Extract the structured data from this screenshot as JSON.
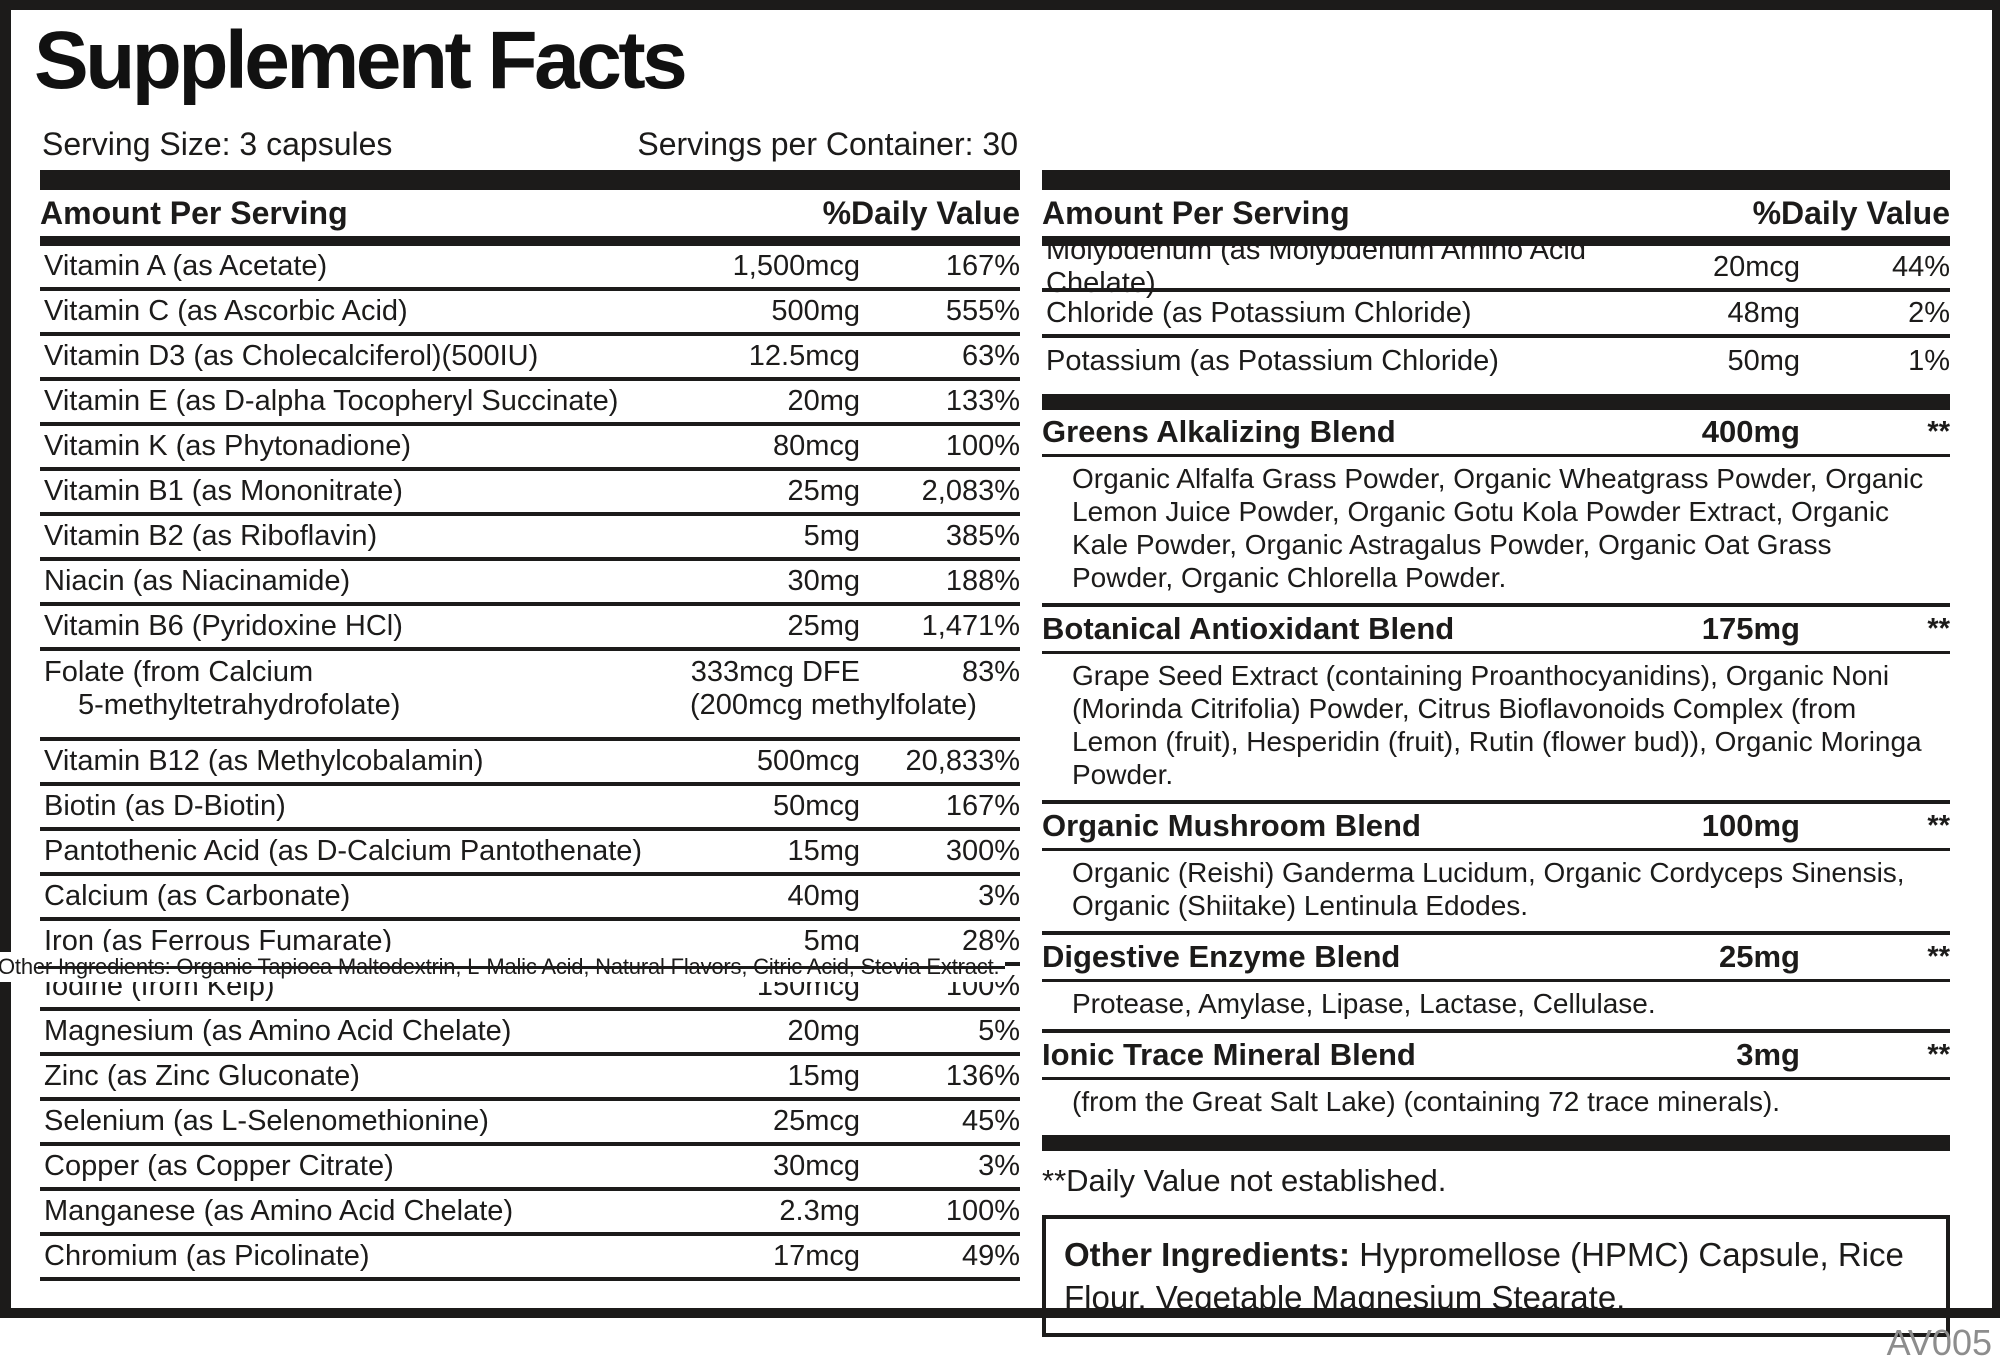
{
  "title": "Supplement Facts",
  "serving": {
    "size": "Serving Size: 3 capsules",
    "per_container": "Servings per Container: 30"
  },
  "table_headers": {
    "amount": "Amount Per Serving",
    "daily_value": "%Daily Value"
  },
  "left_table": {
    "rows": [
      {
        "name": "Vitamin A (as Acetate)",
        "amount": "1,500mcg",
        "dv": "167%"
      },
      {
        "name": "Vitamin C (as Ascorbic Acid)",
        "amount": "500mg",
        "dv": "555%"
      },
      {
        "name": "Vitamin D3 (as Cholecalciferol)(500IU)",
        "amount": "12.5mcg",
        "dv": "63%"
      },
      {
        "name": "Vitamin E (as D-alpha Tocopheryl Succinate)",
        "amount": "20mg",
        "dv": "133%"
      },
      {
        "name": "Vitamin K (as Phytonadione)",
        "amount": "80mcg",
        "dv": "100%"
      },
      {
        "name": "Vitamin B1 (as Mononitrate)",
        "amount": "25mg",
        "dv": "2,083%"
      },
      {
        "name": "Vitamin B2 (as Riboflavin)",
        "amount": "5mg",
        "dv": "385%"
      },
      {
        "name": "Niacin (as Niacinamide)",
        "amount": "30mg",
        "dv": "188%"
      },
      {
        "name": "Vitamin B6 (Pyridoxine HCl)",
        "amount": "25mg",
        "dv": "1,471%"
      },
      {
        "name": "Folate (from Calcium",
        "name2": "5-methyltetrahydrofolate)",
        "amount": "333mcg DFE",
        "amount2": "(200mcg methylfolate)",
        "dv": "83%",
        "tall": true
      },
      {
        "name": "Vitamin B12 (as Methylcobalamin)",
        "amount": "500mcg",
        "dv": "20,833%"
      },
      {
        "name": "Biotin (as D-Biotin)",
        "amount": "50mcg",
        "dv": "167%"
      },
      {
        "name": "Pantothenic Acid (as D-Calcium Pantothenate)",
        "amount": "15mg",
        "dv": "300%"
      },
      {
        "name": "Calcium (as Carbonate)",
        "amount": "40mg",
        "dv": "3%"
      },
      {
        "name": "Iron (as Ferrous Fumarate)",
        "amount": "5mg",
        "dv": "28%",
        "overlay": true
      },
      {
        "name": "Iodine (from Kelp)",
        "amount": "150mcg",
        "dv": "100%"
      },
      {
        "name": "Magnesium (as Amino Acid Chelate)",
        "amount": "20mg",
        "dv": "5%"
      },
      {
        "name": "Zinc (as Zinc Gluconate)",
        "amount": "15mg",
        "dv": "136%"
      },
      {
        "name": "Selenium (as L-Selenomethionine)",
        "amount": "25mcg",
        "dv": "45%"
      },
      {
        "name": "Copper (as Copper Citrate)",
        "amount": "30mcg",
        "dv": "3%"
      },
      {
        "name": "Manganese (as Amino Acid Chelate)",
        "amount": "2.3mg",
        "dv": "100%"
      },
      {
        "name": "Chromium (as Picolinate)",
        "amount": "17mcg",
        "dv": "49%"
      }
    ]
  },
  "right_table": {
    "rows": [
      {
        "name": "Molybdenum (as Molybdenum Amino Acid Chelate)",
        "amount": "20mcg",
        "dv": "44%"
      },
      {
        "name": "Chloride (as Potassium Chloride)",
        "amount": "48mg",
        "dv": "2%"
      },
      {
        "name": "Potassium (as Potassium Chloride)",
        "amount": "50mg",
        "dv": "1%"
      }
    ],
    "blends": [
      {
        "name": "Greens Alkalizing Blend",
        "amount": "400mg",
        "dv": "**",
        "ingredients": "Organic Alfalfa Grass Powder, Organic Wheatgrass Powder, Organic Lemon Juice Powder, Organic Gotu Kola Powder Extract, Organic Kale Powder, Organic Astragalus Powder, Organic Oat Grass Powder, Organic Chlorella Powder."
      },
      {
        "name": "Botanical Antioxidant Blend",
        "amount": "175mg",
        "dv": "**",
        "ingredients": "Grape Seed Extract (containing Proanthocyanidins), Organic Noni (Morinda Citrifolia) Powder, Citrus Bioflavonoids Complex (from Lemon (fruit), Hesperidin (fruit), Rutin (flower bud)), Organic Moringa Powder."
      },
      {
        "name": "Organic Mushroom Blend",
        "amount": "100mg",
        "dv": "**",
        "ingredients": "Organic (Reishi) Ganderma Lucidum, Organic Cordyceps Sinensis, Organic (Shiitake) Lentinula Edodes."
      },
      {
        "name": "Digestive Enzyme Blend",
        "amount": "25mg",
        "dv": "**",
        "ingredients": "Protease, Amylase, Lipase, Lactase, Cellulase."
      },
      {
        "name": "Ionic Trace Mineral Blend",
        "amount": "3mg",
        "dv": "**",
        "ingredients": "(from the Great Salt Lake) (containing 72 trace minerals)."
      }
    ]
  },
  "footnote": "**Daily Value not established.",
  "other_ingredients_box": {
    "label": "Other Ingredients:",
    "text": " Hypromellose (HPMC) Capsule, Rice Flour, Vegetable Magnesium Stearate."
  },
  "overlay_text": "Other Ingredients: Organic Tapioca Maltodextrin, L-Malic Acid, Natural Flavors, Citric Acid, Stevia Extract.",
  "footer_code": "AV005",
  "colors": {
    "ink": "#1c1b1a",
    "muted": "#8d8d8d"
  }
}
